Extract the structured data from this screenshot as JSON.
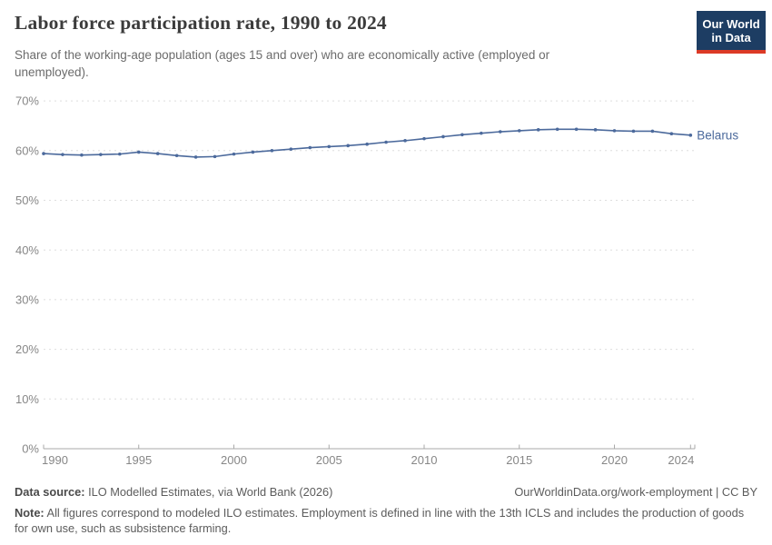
{
  "header": {
    "title": "Labor force participation rate, 1990 to 2024",
    "subtitle": "Share of the working-age population (ages 15 and over) who are economically active (employed or unemployed).",
    "logo": {
      "line1": "Our World",
      "line2": "in Data"
    }
  },
  "chart_data": {
    "type": "line",
    "title": "Labor force participation rate, 1990 to 2024",
    "xlabel": "",
    "ylabel": "",
    "ylim": [
      0,
      70
    ],
    "yticks": [
      0,
      10,
      20,
      30,
      40,
      50,
      60,
      70
    ],
    "ytick_suffix": "%",
    "xticks": [
      1990,
      1995,
      2000,
      2005,
      2010,
      2015,
      2020,
      2024
    ],
    "grid": "horizontal-dashed",
    "legend_position": "end-of-line",
    "x": [
      1990,
      1991,
      1992,
      1993,
      1994,
      1995,
      1996,
      1997,
      1998,
      1999,
      2000,
      2001,
      2002,
      2003,
      2004,
      2005,
      2006,
      2007,
      2008,
      2009,
      2010,
      2011,
      2012,
      2013,
      2014,
      2015,
      2016,
      2017,
      2018,
      2019,
      2020,
      2021,
      2022,
      2023,
      2024
    ],
    "series": [
      {
        "name": "Belarus",
        "values": [
          59.4,
          59.2,
          59.1,
          59.2,
          59.3,
          59.7,
          59.4,
          59.0,
          58.7,
          58.8,
          59.3,
          59.7,
          60.0,
          60.3,
          60.6,
          60.8,
          61.0,
          61.3,
          61.7,
          62.0,
          62.4,
          62.8,
          63.2,
          63.5,
          63.8,
          64.0,
          64.2,
          64.3,
          64.3,
          64.2,
          64.0,
          63.9,
          63.9,
          63.4,
          63.1
        ]
      }
    ]
  },
  "footer": {
    "source_label": "Data source:",
    "source_text": " ILO Modelled Estimates, via World Bank (2026)",
    "link": "OurWorldinData.org/work-employment | CC BY",
    "note_label": "Note:",
    "note_text": " All figures correspond to modeled ILO estimates. Employment is defined in line with the 13th ICLS and includes the production of goods for own use, such as subsistence farming."
  },
  "colors": {
    "line": "#4C6A9C",
    "logo_bg": "#1d3d63",
    "logo_accent": "#dc3a26",
    "grid": "#dedede",
    "axis": "#a9a9a9",
    "axis_text": "#878787",
    "title_text": "#3b3b3b",
    "subtitle_text": "#6b6b6b",
    "footer_text": "#5c5c5c"
  }
}
